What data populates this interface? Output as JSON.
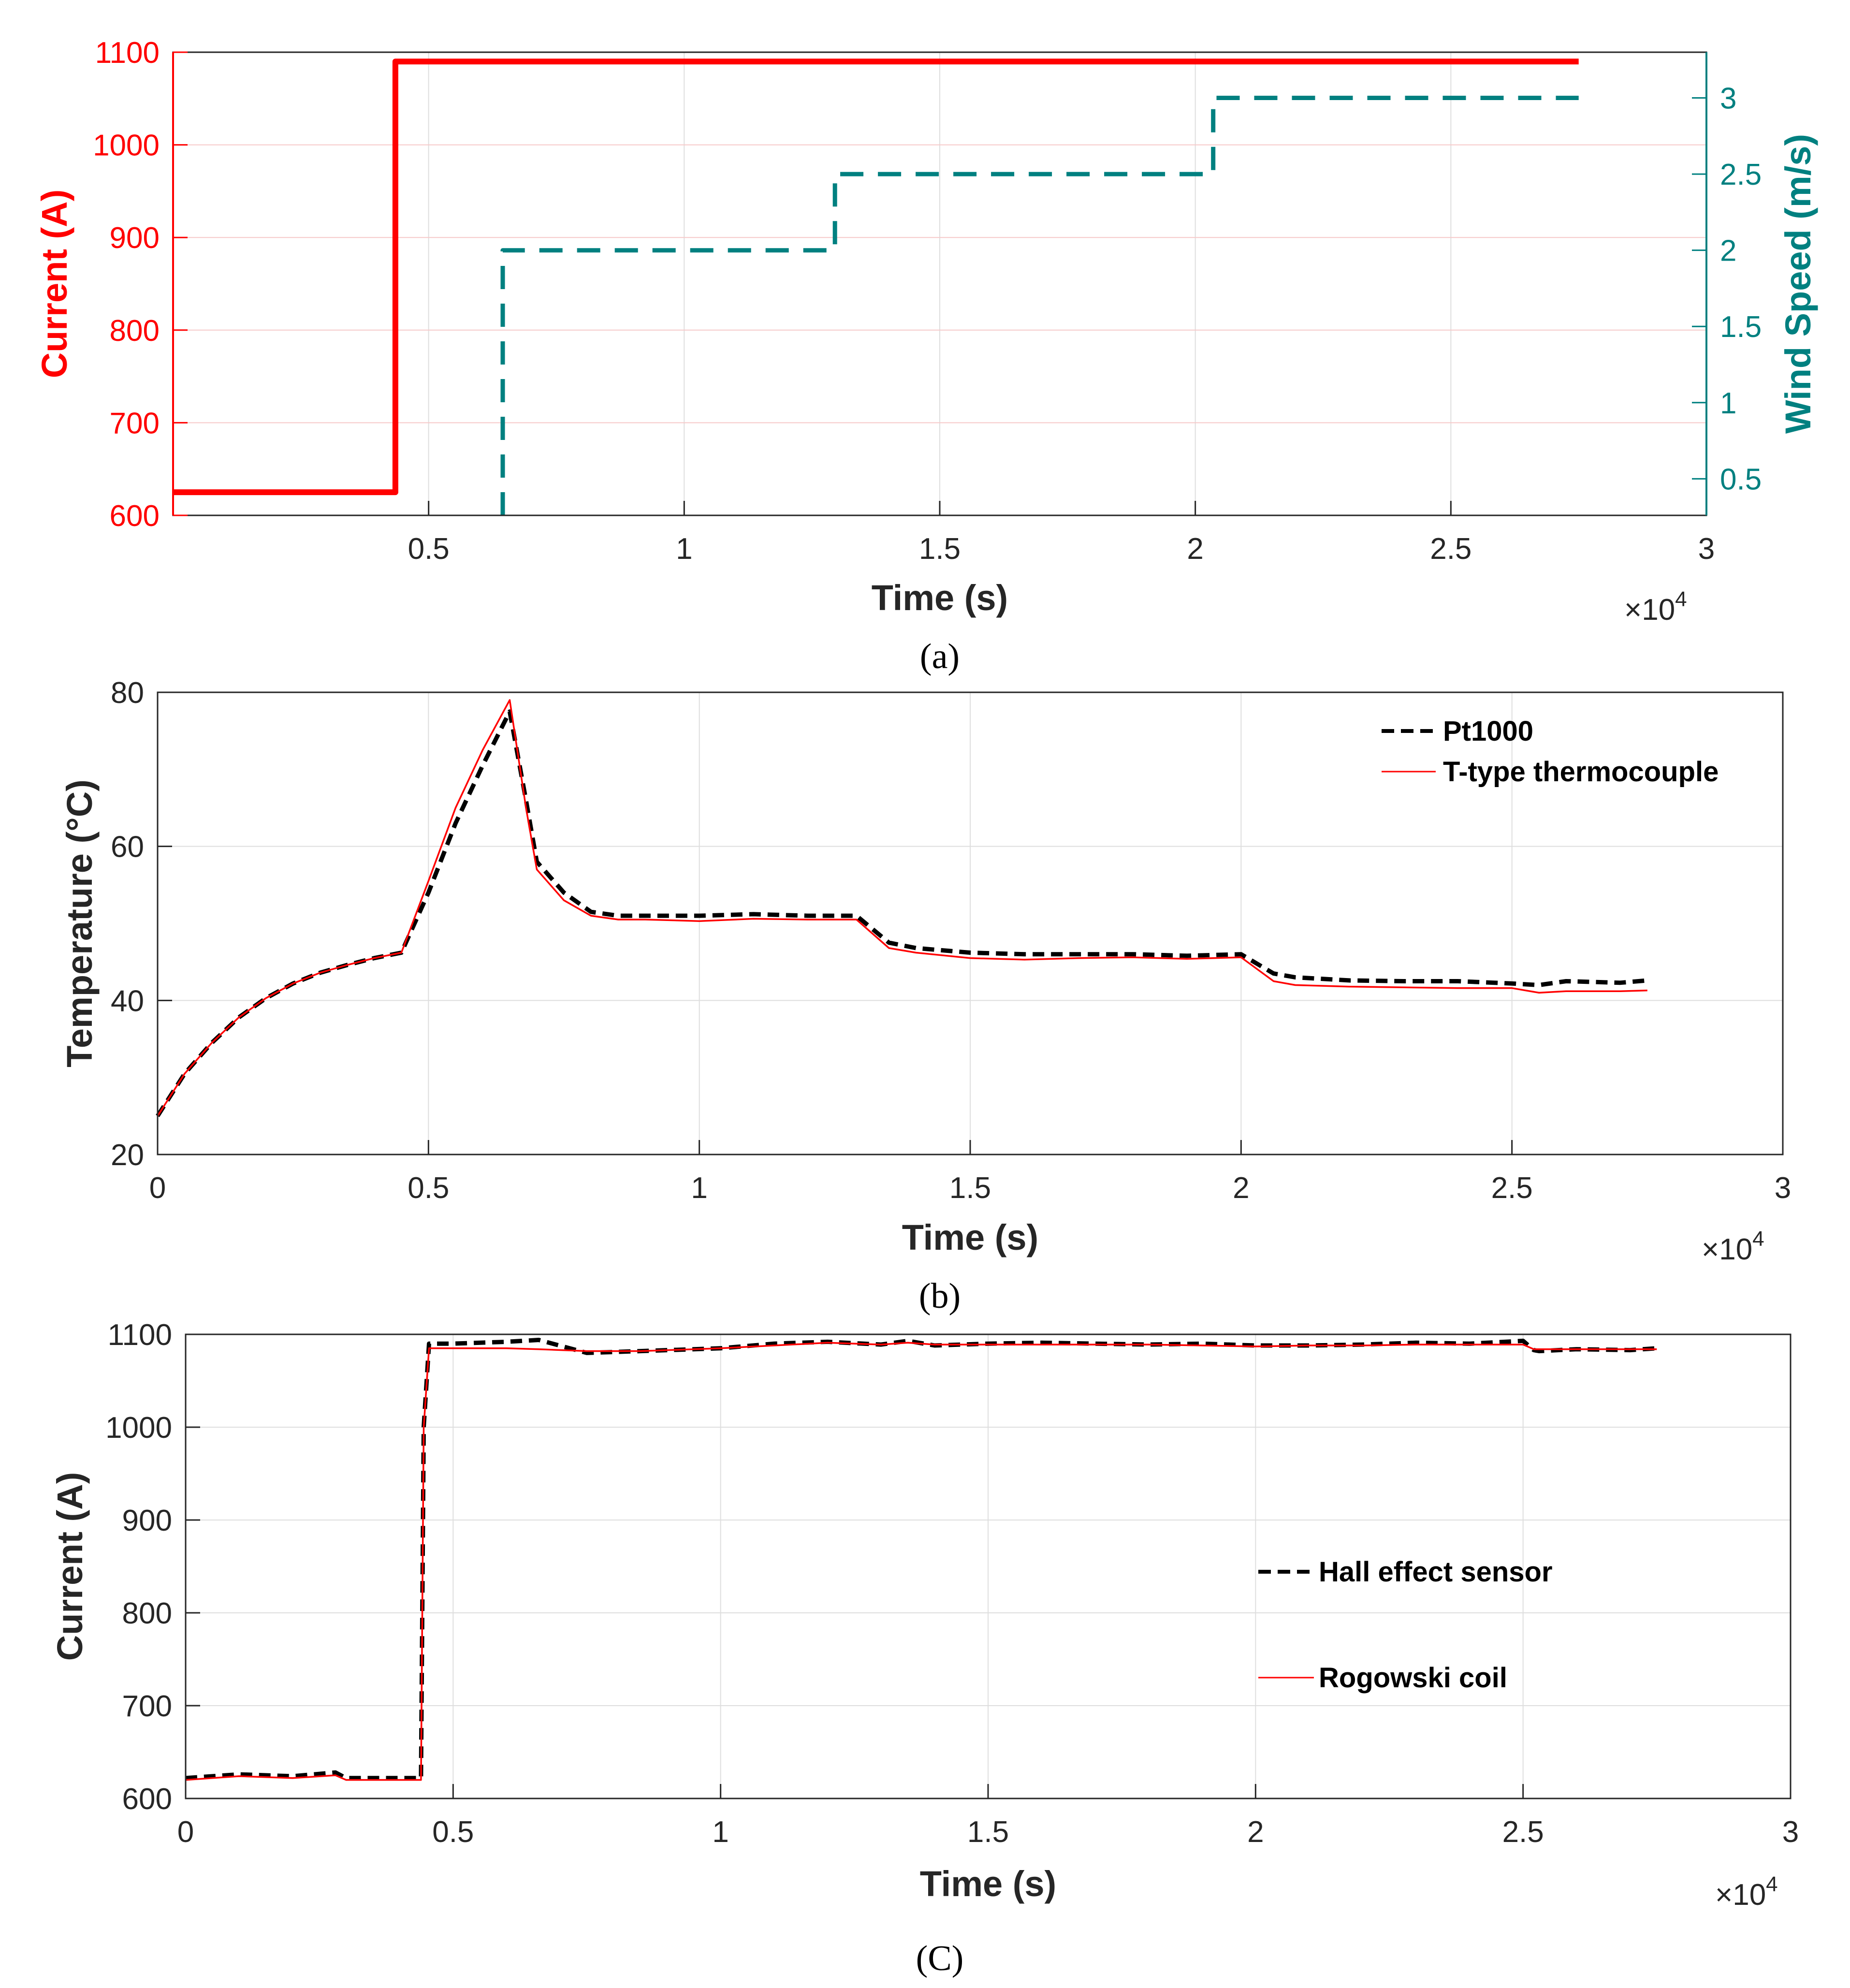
{
  "colors": {
    "current": "#ff0000",
    "wind": "#008080",
    "pt1000": "#000000",
    "thermocouple": "#ff0000",
    "axis": "#262626",
    "grid": "#dedede"
  },
  "chart_data": [
    {
      "type": "line",
      "caption": "(a)",
      "xlabel": "Time (s)",
      "x_exponent": "×10",
      "x_exponent_power": "4",
      "xlim": [
        0,
        30000
      ],
      "xticks": [
        5000,
        10000,
        15000,
        20000,
        25000,
        30000
      ],
      "xtick_labels": [
        "0.5",
        "1",
        "1.5",
        "2",
        "2.5",
        "3"
      ],
      "ylabel_left": "Current (A)",
      "ylim_left": [
        600,
        1100
      ],
      "yticks_left": [
        600,
        700,
        800,
        900,
        1000,
        1100
      ],
      "ytick_labels_left": [
        "600",
        "700",
        "800",
        "900",
        "1000",
        "1100"
      ],
      "ylabel_right": "Wind Speed (m/s)",
      "ylim_right": [
        0.26,
        3.3
      ],
      "yticks_right": [
        0.5,
        1,
        1.5,
        2,
        2.5,
        3
      ],
      "ytick_labels_right": [
        "0.5",
        "1",
        "1.5",
        "2",
        "2.5",
        "3"
      ],
      "grid": true,
      "series": [
        {
          "axis": "left",
          "style": "solid",
          "x": [
            0,
            4350,
            4350,
            27500
          ],
          "y": [
            625,
            625,
            1090,
            1090
          ]
        },
        {
          "axis": "right",
          "style": "dashed",
          "x": [
            6450,
            6450,
            12950,
            12950,
            20350,
            20350,
            27500
          ],
          "y": [
            0.26,
            2,
            2,
            2.5,
            2.5,
            3,
            3
          ]
        }
      ]
    },
    {
      "type": "line",
      "caption": "(b)",
      "xlabel": "Time (s)",
      "x_exponent": "×10",
      "x_exponent_power": "4",
      "ylabel": "Temperature (°C)",
      "xlim": [
        0,
        30000
      ],
      "ylim": [
        20,
        80
      ],
      "xticks": [
        0,
        5000,
        10000,
        15000,
        20000,
        25000,
        30000
      ],
      "xtick_labels": [
        "0",
        "0.5",
        "1",
        "1.5",
        "2",
        "2.5",
        "3"
      ],
      "yticks": [
        20,
        40,
        60,
        80
      ],
      "ytick_labels": [
        "20",
        "40",
        "60",
        "80"
      ],
      "grid": true,
      "legend": "top-right",
      "series": [
        {
          "name": "Pt1000",
          "style": "dashed",
          "x": [
            0,
            500,
            1000,
            1500,
            2000,
            2500,
            3000,
            3500,
            4000,
            4500,
            5000,
            5500,
            6000,
            6500,
            6800,
            7000,
            7500,
            8000,
            8500,
            9000,
            10000,
            11000,
            12000,
            12900,
            13500,
            14000,
            15000,
            16000,
            17000,
            18000,
            19000,
            20000,
            20600,
            21000,
            22000,
            23000,
            24000,
            25000,
            25500,
            26000,
            27000,
            27500
          ],
          "y": [
            25,
            30.5,
            34.5,
            37.8,
            40.3,
            42.2,
            43.6,
            44.6,
            45.5,
            46.2,
            54,
            63,
            70.5,
            77.5,
            66,
            58,
            54,
            51.5,
            51,
            51,
            51,
            51.2,
            51,
            51,
            47.5,
            46.8,
            46.2,
            46,
            46,
            46,
            45.8,
            46,
            43.5,
            43,
            42.6,
            42.5,
            42.5,
            42.2,
            42,
            42.5,
            42.3,
            42.6
          ]
        },
        {
          "name": "T-type thermocouple",
          "style": "solid",
          "x": [
            0,
            500,
            1000,
            1500,
            2000,
            2500,
            3000,
            3500,
            4000,
            4500,
            5000,
            5500,
            6000,
            6500,
            6800,
            7000,
            7500,
            8000,
            8500,
            9000,
            10000,
            11000,
            12000,
            12900,
            13500,
            14000,
            15000,
            16000,
            17000,
            18000,
            19000,
            20000,
            20600,
            21000,
            22000,
            23000,
            24000,
            25000,
            25500,
            26000,
            27000,
            27500
          ],
          "y": [
            25,
            30.5,
            34.5,
            37.8,
            40.3,
            42.2,
            43.6,
            44.6,
            45.5,
            46.2,
            55.5,
            65,
            72.5,
            79,
            65,
            57,
            53,
            51,
            50.5,
            50.5,
            50.3,
            50.6,
            50.5,
            50.5,
            46.8,
            46.2,
            45.5,
            45.3,
            45.5,
            45.6,
            45.4,
            45.6,
            42.5,
            42,
            41.8,
            41.7,
            41.6,
            41.6,
            41,
            41.2,
            41.2,
            41.3
          ]
        }
      ]
    },
    {
      "type": "line",
      "caption": "(C)",
      "xlabel": "Time (s)",
      "x_exponent": "×10",
      "x_exponent_power": "4",
      "ylabel": "Current (A)",
      "xlim": [
        0,
        30000
      ],
      "ylim": [
        600,
        1100
      ],
      "xticks": [
        0,
        5000,
        10000,
        15000,
        20000,
        25000,
        30000
      ],
      "xtick_labels": [
        "0",
        "0.5",
        "1",
        "1.5",
        "2",
        "2.5",
        "3"
      ],
      "yticks": [
        600,
        700,
        800,
        900,
        1000,
        1100
      ],
      "ytick_labels": [
        "600",
        "700",
        "800",
        "900",
        "1000",
        "1100"
      ],
      "grid": true,
      "legend": "center-right",
      "series": [
        {
          "name": "Hall effect sensor",
          "style": "dashed",
          "x": [
            0,
            1000,
            2000,
            2800,
            3000,
            4400,
            4450,
            4550,
            5000,
            6000,
            6600,
            7500,
            8500,
            10000,
            11000,
            12000,
            13000,
            13500,
            14000,
            15000,
            16000,
            17000,
            18000,
            19000,
            20000,
            21000,
            22000,
            23000,
            24000,
            25000,
            25200,
            25300,
            26000,
            27000,
            27500
          ],
          "y": [
            622,
            626,
            624,
            628,
            622,
            622,
            1000,
            1090,
            1090,
            1092,
            1094,
            1080,
            1082,
            1085,
            1090,
            1092,
            1089,
            1093,
            1088,
            1090,
            1091,
            1090,
            1089,
            1090,
            1088,
            1088,
            1089,
            1091,
            1090,
            1093,
            1083,
            1082,
            1084,
            1083,
            1085
          ]
        },
        {
          "name": "Rogowski coil",
          "style": "solid",
          "x": [
            0,
            1000,
            2000,
            2800,
            3000,
            4400,
            4450,
            4550,
            5000,
            6000,
            6600,
            7500,
            8500,
            10000,
            11000,
            12000,
            13000,
            13500,
            14000,
            15000,
            16000,
            17000,
            18000,
            19000,
            20000,
            21000,
            22000,
            23000,
            24000,
            25000,
            25200,
            25300,
            26000,
            27000,
            27500
          ],
          "y": [
            620,
            624,
            622,
            625,
            620,
            620,
            1000,
            1085,
            1085,
            1085,
            1084,
            1082,
            1082,
            1085,
            1088,
            1091,
            1089,
            1091,
            1089,
            1089,
            1089,
            1089,
            1089,
            1088,
            1087,
            1088,
            1088,
            1089,
            1089,
            1089,
            1084,
            1084,
            1084,
            1084,
            1084
          ]
        }
      ]
    }
  ]
}
